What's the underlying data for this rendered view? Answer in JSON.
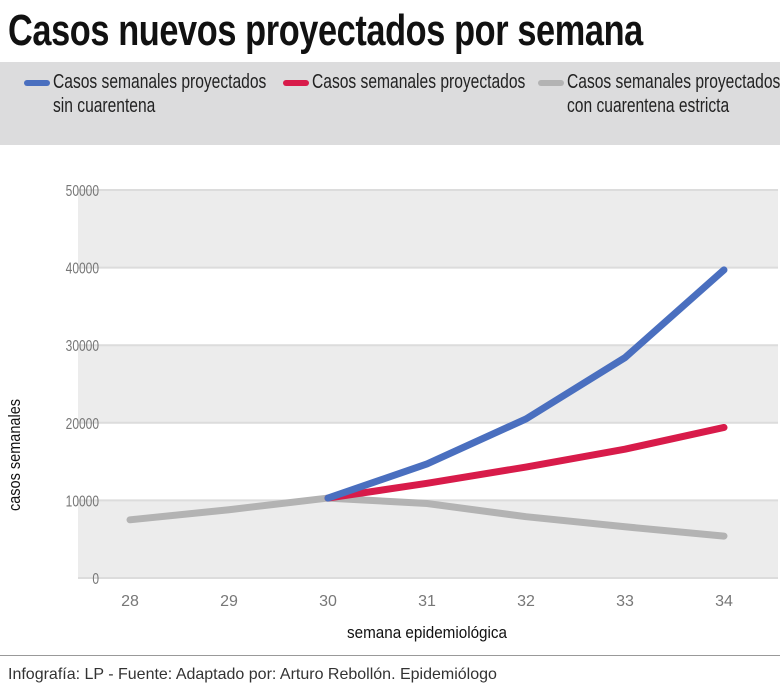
{
  "title": "Casos nuevos proyectados por semana",
  "footer": "Infografía: LP - Fuente: Adaptado por: Arturo Rebollón. Epidemiólogo",
  "chart_data": {
    "type": "line",
    "title": "Casos nuevos proyectados por semana",
    "xlabel": "semana epidemiológica",
    "ylabel": "casos semanales",
    "x": [
      28,
      29,
      30,
      31,
      32,
      33,
      34
    ],
    "ylim": [
      0,
      50000
    ],
    "yticks": [
      0,
      10000,
      20000,
      30000,
      40000,
      50000
    ],
    "grid": "alternating horizontal bands",
    "legend_position": "top",
    "series": [
      {
        "name_line1": "Casos semanales proyectados",
        "name_line2": "sin cuarentena",
        "color": "#4a6fbf",
        "values": [
          null,
          null,
          10300,
          14700,
          20500,
          28400,
          39700
        ]
      },
      {
        "name_line1": "Casos semanales proyectados",
        "name_line2": "",
        "color": "#d81b4a",
        "values": [
          null,
          null,
          10300,
          12200,
          14300,
          16600,
          19400
        ]
      },
      {
        "name_line1": "Casos semanales proyectados",
        "name_line2": "con  cuarentena estricta",
        "color": "#b3b3b3",
        "values": [
          7500,
          8800,
          10300,
          9600,
          7900,
          6600,
          5400
        ]
      }
    ]
  }
}
